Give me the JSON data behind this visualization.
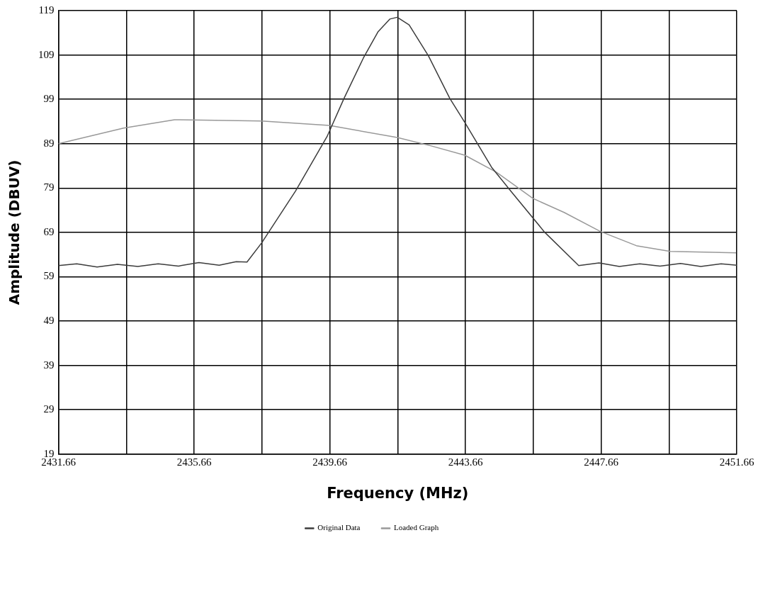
{
  "chart_data": {
    "type": "line",
    "xlabel": "Frequency (MHz)",
    "ylabel": "Amplitude (DBUV)",
    "xlim": [
      2431.66,
      2451.66
    ],
    "xticks": [
      2431.66,
      {
        "value": 2433.66,
        "label": null
      },
      2435.66,
      {
        "value": 2437.66,
        "label": null
      },
      2439.66,
      {
        "value": 2441.66,
        "label": null
      },
      2443.66,
      {
        "value": 2445.66,
        "label": null
      },
      2447.66,
      {
        "value": 2449.66,
        "label": null
      },
      2451.66
    ],
    "ylim": [
      19,
      119
    ],
    "yticks": [
      19,
      29,
      39,
      49,
      59,
      69,
      79,
      89,
      99,
      109,
      119
    ],
    "grid": true,
    "legend": "bottom",
    "marker": "none",
    "line_style": "solid",
    "series": [
      {
        "name": "Original Data",
        "color": "#3c3c3c",
        "x": [
          2431.66,
          2432.2,
          2432.8,
          2433.4,
          2434.0,
          2434.6,
          2435.2,
          2435.8,
          2436.4,
          2436.9,
          2437.22,
          2437.65,
          2438.65,
          2439.58,
          2440.08,
          2440.65,
          2441.08,
          2441.43,
          2441.65,
          2442.0,
          2442.57,
          2443.2,
          2443.64,
          2444.43,
          2445.0,
          2446.0,
          2447.0,
          2447.6,
          2448.2,
          2448.8,
          2449.4,
          2450.0,
          2450.6,
          2451.2,
          2451.66
        ],
        "values": [
          61.5,
          61.9,
          61.2,
          61.8,
          61.3,
          61.9,
          61.4,
          62.2,
          61.6,
          62.4,
          62.3,
          66.6,
          78.3,
          90.6,
          99.2,
          108.3,
          114.2,
          117.1,
          117.5,
          115.8,
          108.8,
          99.2,
          93.8,
          83.7,
          78.3,
          69.0,
          61.5,
          62.1,
          61.3,
          61.9,
          61.4,
          62.0,
          61.3,
          61.9,
          61.6
        ]
      },
      {
        "name": "Loaded Graph",
        "color": "#999999",
        "x": [
          2431.66,
          2433.58,
          2435.08,
          2437.65,
          2439.65,
          2441.65,
          2442.65,
          2443.64,
          2444.57,
          2445.64,
          2446.57,
          2447.64,
          2448.7,
          2449.7,
          2451.64
        ],
        "values": [
          89.0,
          92.5,
          94.4,
          94.1,
          93.1,
          90.4,
          88.5,
          86.4,
          82.6,
          76.7,
          73.5,
          69.2,
          66.0,
          64.7,
          64.4
        ]
      }
    ]
  }
}
